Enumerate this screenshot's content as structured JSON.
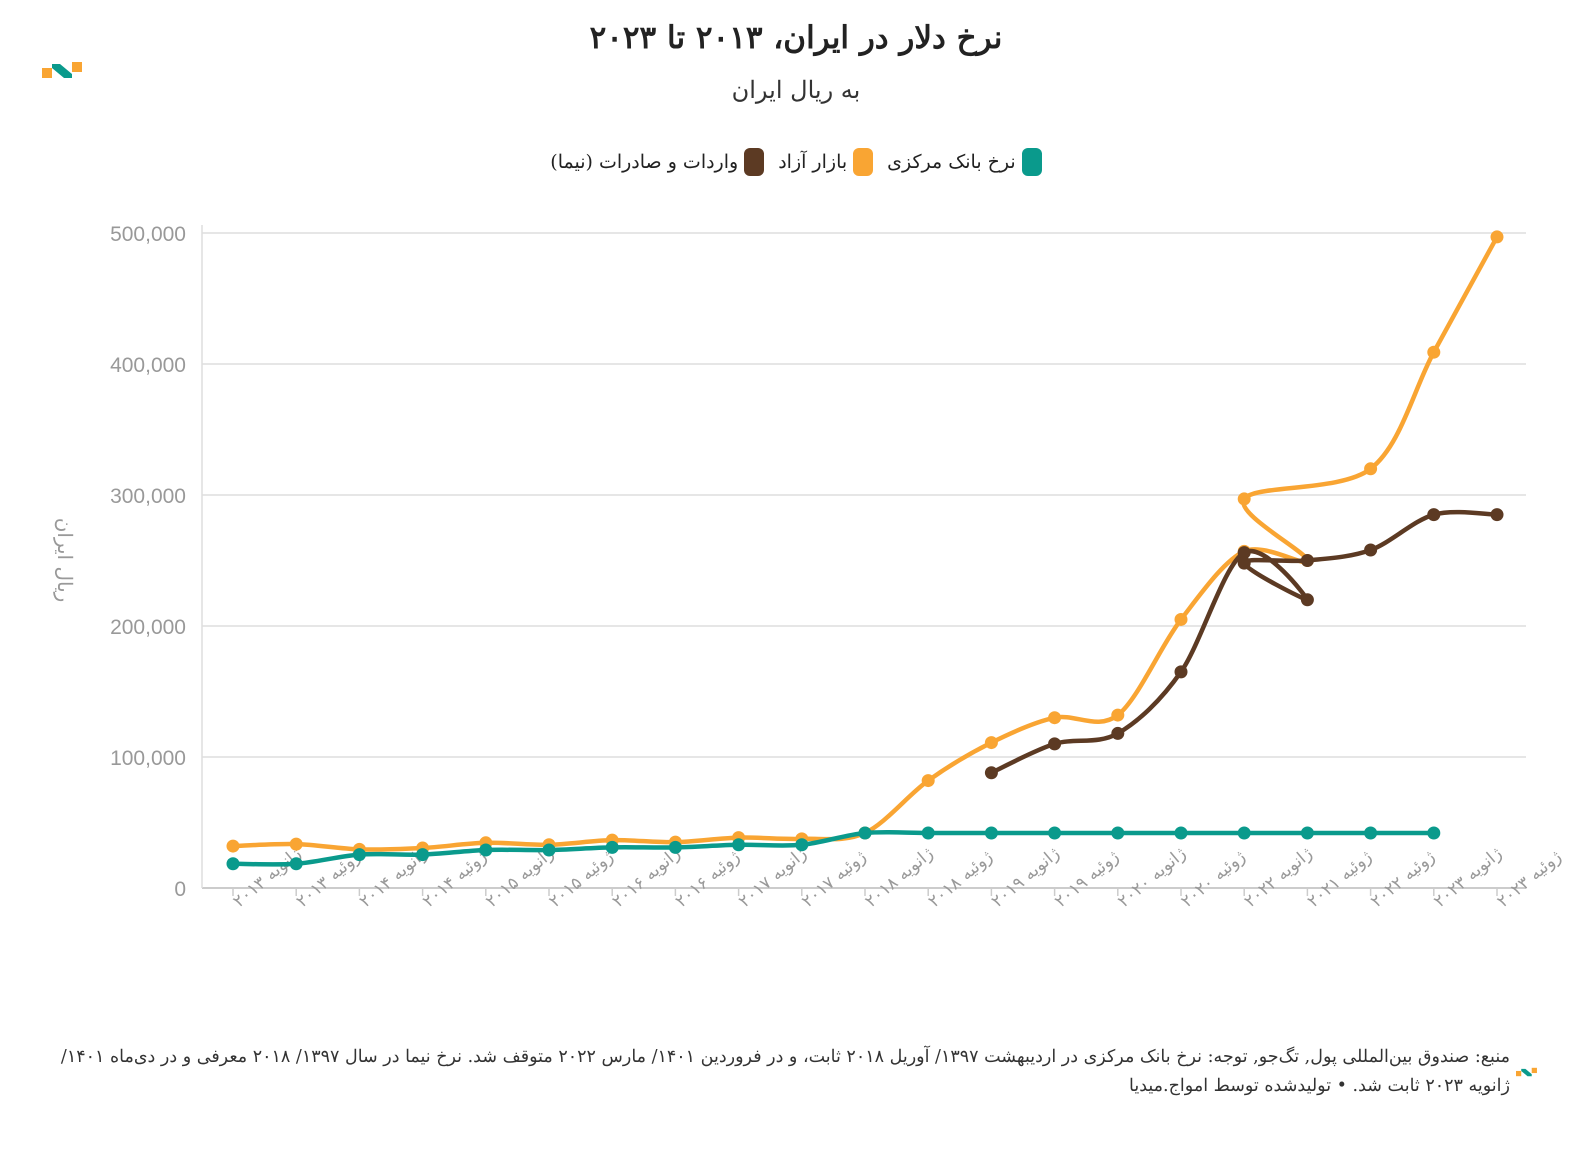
{
  "header": {
    "title": "نرخ دلار در ایران، ۲۰۱۳ تا ۲۰۲۳",
    "subtitle": "به ریال ایران"
  },
  "legend": [
    {
      "label": "نرخ بانک مرکزی",
      "color": "#0a9a8c"
    },
    {
      "label": "بازار آزاد",
      "color": "#f9a533"
    },
    {
      "label": "واردات و صادرات (نیما)",
      "color": "#5c3a23"
    }
  ],
  "footer": {
    "note": "منبع: صندوق بین‌المللی پول, تگ‌جو, توجه: نرخ بانک مرکزی در اردیبهشت ۱۳۹۷/ آوریل ۲۰۱۸ ثابت، و در فروردین ۱۴۰۱/ مارس ۲۰۲۲ متوقف شد. نرخ نیما در سال ۱۳۹۷/ ۲۰۱۸ معرفی و در دی‌ماه ۱۴۰۱/ ژانویه ۲۰۲۳ ثابت شد. • تولیدشده توسط امواج.میدیا"
  },
  "colors": {
    "grid": "#e6e6e6",
    "axis_text": "#999999",
    "logo_orange": "#f9a533",
    "logo_teal": "#0a9a8c"
  },
  "chart_data": {
    "type": "line",
    "title": "نرخ دلار در ایران، ۲۰۱۳ تا ۲۰۲۳",
    "subtitle": "به ریال ایران",
    "ylabel": "ریال ایران",
    "xlabel": "",
    "ylim": [
      0,
      500000
    ],
    "yticks": [
      0,
      100000,
      200000,
      300000,
      400000,
      500000
    ],
    "ytick_labels": [
      "0",
      "100,000",
      "200,000",
      "300,000",
      "400,000",
      "500,000"
    ],
    "grid": true,
    "legend_position": "top-center",
    "categories": [
      "ژانویه ۲۰۱۳",
      "ژوئیه ۲۰۱۳",
      "ژانویه ۲۰۱۴",
      "ژوئیه ۲۰۱۴",
      "ژانویه ۲۰۱۵",
      "ژوئیه ۲۰۱۵",
      "ژانویه ۲۰۱۶",
      "ژوئیه ۲۰۱۶",
      "ژانویه ۲۰۱۷",
      "ژوئیه ۲۰۱۷",
      "ژانویه ۲۰۱۸",
      "ژوئیه ۲۰۱۸",
      "ژانویه ۲۰۱۹",
      "ژوئیه ۲۰۱۹",
      "ژانویه ۲۰۲۰",
      "ژوئیه ۲۰۲۰",
      "ژانویه ۲۰۲۲",
      "ژوئیه ۲۰۲۱",
      "ژوئیه ۲۰۲۲",
      "ژانویه ۲۰۲۳",
      "ژوئیه ۲۰۲۳"
    ],
    "series": [
      {
        "name": "نرخ بانک مرکزی",
        "color": "#0a9a8c",
        "points": [
          [
            0,
            18500
          ],
          [
            1,
            18500
          ],
          [
            2,
            25500
          ],
          [
            3,
            25500
          ],
          [
            4,
            29000
          ],
          [
            5,
            29000
          ],
          [
            6,
            31000
          ],
          [
            7,
            31000
          ],
          [
            8,
            33000
          ],
          [
            9,
            33000
          ],
          [
            10,
            42000
          ],
          [
            11,
            42000
          ],
          [
            12,
            42000
          ],
          [
            13,
            42000
          ],
          [
            14,
            42000
          ],
          [
            15,
            42000
          ],
          [
            16,
            42000
          ],
          [
            17,
            42000
          ],
          [
            18,
            42000
          ],
          [
            19,
            42000
          ]
        ]
      },
      {
        "name": "بازار آزاد",
        "color": "#f9a533",
        "points": [
          [
            0,
            32000
          ],
          [
            1,
            33500
          ],
          [
            2,
            29500
          ],
          [
            3,
            30500
          ],
          [
            4,
            34500
          ],
          [
            5,
            33000
          ],
          [
            6,
            36500
          ],
          [
            7,
            35000
          ],
          [
            8,
            38500
          ],
          [
            9,
            37500
          ],
          [
            10,
            42000
          ],
          [
            11,
            82000
          ],
          [
            12,
            111000
          ],
          [
            13,
            130000
          ],
          [
            14,
            132000
          ],
          [
            15,
            205000
          ],
          [
            16,
            257000
          ],
          [
            17,
            250000
          ],
          [
            16,
            297000
          ],
          [
            18,
            320000
          ],
          [
            19,
            409000
          ],
          [
            20,
            497000
          ]
        ]
      },
      {
        "name": "واردات و صادرات (نیما)",
        "color": "#5c3a23",
        "points": [
          [
            12,
            88000
          ],
          [
            13,
            110000
          ],
          [
            14,
            118000
          ],
          [
            15,
            165000
          ],
          [
            16,
            256000
          ],
          [
            17,
            220000
          ],
          [
            16,
            248000
          ],
          [
            17,
            250000
          ],
          [
            18,
            258000
          ],
          [
            19,
            285000
          ],
          [
            20,
            285000
          ]
        ]
      }
    ]
  }
}
